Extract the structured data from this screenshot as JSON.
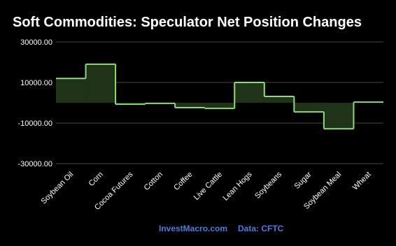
{
  "chart_data": {
    "type": "step",
    "title": "Soft Commodities: Speculator Net Position Changes",
    "categories": [
      "Soybean Oil",
      "Corn",
      "Cocoa Futures",
      "Cotton",
      "Coffee",
      "Live Cattle",
      "Lean Hogs",
      "Soybeans",
      "Sugar",
      "Soybean Meal",
      "Wheat"
    ],
    "values": [
      12000,
      19000,
      -700,
      -300,
      -2400,
      -2800,
      10000,
      3100,
      -4500,
      -12800,
      300
    ],
    "color": "#8fd97a",
    "fill_color": "#1e3318",
    "ylim": [
      -31000,
      30000
    ],
    "yticks": [
      {
        "value": -30000,
        "label": "-30000.00"
      },
      {
        "value": -10000,
        "label": "-10000.00"
      },
      {
        "value": 10000,
        "label": "10000.00"
      },
      {
        "value": 30000,
        "label": "30000.00"
      }
    ],
    "grid": true,
    "source_site": "InvestMacro.com",
    "source_data": "Data: CFTC"
  }
}
